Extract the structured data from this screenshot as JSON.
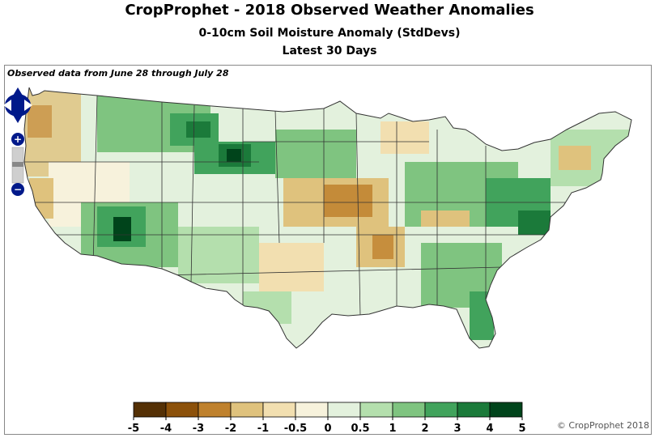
{
  "titles": {
    "main": "CropProphet - 2018 Observed Weather Anomalies",
    "subtitle": "0-10cm Soil Moisture Anomaly (StdDevs)",
    "period": "Latest 30 Days"
  },
  "observed_note": "Observed data from June 28 through July 28",
  "copyright": "© CropProphet 2018",
  "legend": {
    "tick_labels": [
      "-5",
      "-4",
      "-3",
      "-2",
      "-1",
      "-0.5",
      "0",
      "0.5",
      "1",
      "2",
      "3",
      "4",
      "5"
    ],
    "colors": [
      "#543005",
      "#8c510a",
      "#bf812d",
      "#dfc27d",
      "#f2dfb0",
      "#f7f2dc",
      "#e3f1dd",
      "#b4dfad",
      "#7fc480",
      "#41a35c",
      "#1b7a3a",
      "#00441b"
    ]
  },
  "map_controls": {
    "pan": "pan-control",
    "zoom_in": "+",
    "zoom_out": "−"
  },
  "colors": {
    "state_border": "#333333",
    "county_border": "#b0b0b0",
    "frame_border": "#888888"
  }
}
